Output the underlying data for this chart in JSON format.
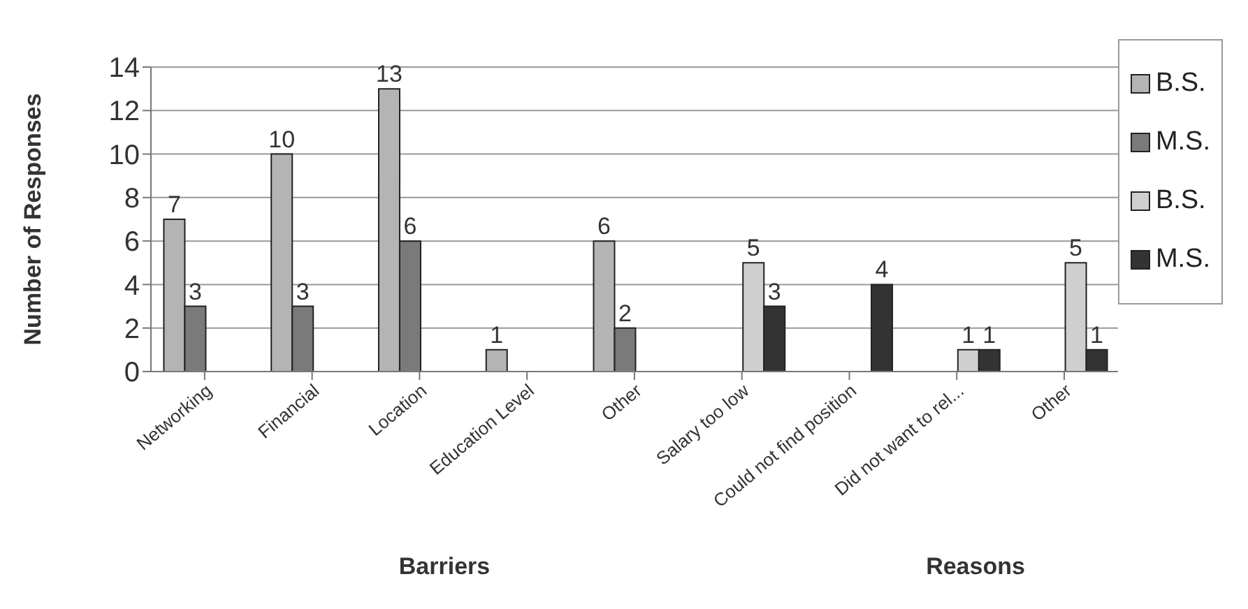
{
  "chart_data": {
    "type": "bar",
    "ylabel": "Number of Responses",
    "annotations": [
      "Barriers",
      "Reasons"
    ],
    "categories": [
      "Networking",
      "Financial",
      "Location",
      "Education Level",
      "Other",
      "Salary too low",
      "Could not find position",
      "Did not want to rel...",
      "Other"
    ],
    "series": [
      {
        "name": "B.S.",
        "color": "#b4b4b4",
        "values": [
          7,
          10,
          13,
          1,
          6,
          null,
          null,
          null,
          null
        ]
      },
      {
        "name": "M.S.",
        "color": "#7a7a7a",
        "values": [
          3,
          3,
          6,
          null,
          2,
          null,
          null,
          null,
          null
        ]
      },
      {
        "name": "B.S.",
        "color": "#cfcfcf",
        "values": [
          null,
          null,
          null,
          null,
          null,
          5,
          null,
          1,
          5
        ]
      },
      {
        "name": "M.S.",
        "color": "#333333",
        "values": [
          null,
          null,
          null,
          null,
          null,
          3,
          4,
          1,
          1
        ]
      }
    ],
    "ylim": [
      0,
      14
    ],
    "yticks": [
      0,
      2,
      4,
      6,
      8,
      10,
      12,
      14
    ],
    "grid": "y",
    "legend": "right",
    "data_labels": true
  }
}
